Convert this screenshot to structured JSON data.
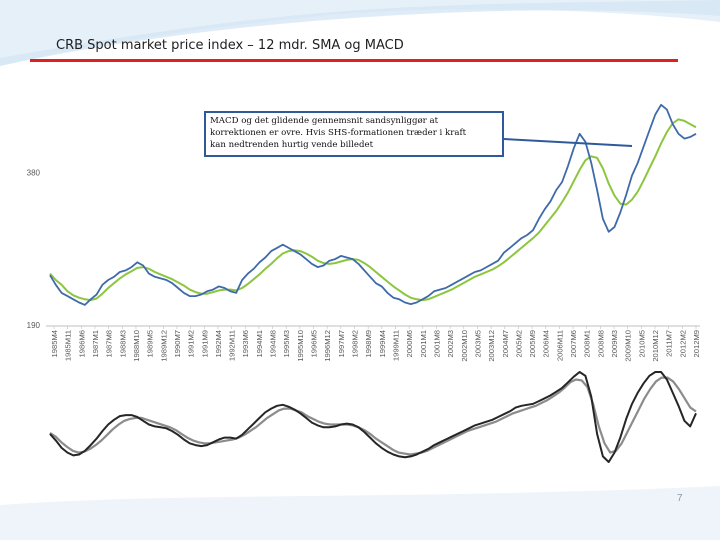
{
  "slide": {
    "title": "CRB Spot market price index – 12 mdr. SMA og MACD",
    "page_number": "7",
    "accent_color": "#e02020",
    "background_wave_color": "#dce9f5"
  },
  "annotation": {
    "lines": [
      "MACD og det glidende gennemsnit sandsynliggør at",
      "korrektionen er ovre. Hvis SHS-formationen træder i kraft",
      "kan nedtrenden hurtig vende billedet"
    ],
    "border_color": "#2e5a9c"
  },
  "chart_data": [
    {
      "type": "line",
      "title": "",
      "xlabel": "",
      "ylabel": "",
      "ylim": [
        190,
        470
      ],
      "yticks": [
        190,
        380
      ],
      "grid": false,
      "legend": "none",
      "x_tick_labels": [
        "1985M4",
        "1985M11",
        "1986M6",
        "1987M1",
        "1987M8",
        "1988M3",
        "1988M10",
        "1989M5",
        "1989M12",
        "1990M7",
        "1991M2",
        "1991M9",
        "1992M4",
        "1992M11",
        "1993M6",
        "1994M1",
        "1994M8",
        "1995M3",
        "1995M10",
        "1996M5",
        "1996M12",
        "1997M7",
        "1998M2",
        "1998M9",
        "1999M4",
        "1999M11",
        "2000M6",
        "2001M1",
        "2001M8",
        "2002M3",
        "2002M10",
        "2003M5",
        "2003M12",
        "2004M7",
        "2005M2",
        "2005M9",
        "2006M4",
        "2006M11",
        "2007M6",
        "2008M1",
        "2008M8",
        "2009M3",
        "2009M10",
        "2010M5",
        "2010M12",
        "2011M7",
        "2012M2",
        "2012M9"
      ],
      "series": [
        {
          "color": "#3f6aaa",
          "values": [
            252,
            240,
            230,
            226,
            222,
            218,
            215,
            222,
            228,
            240,
            246,
            250,
            256,
            258,
            262,
            268,
            264,
            254,
            250,
            248,
            246,
            242,
            236,
            230,
            226,
            226,
            228,
            232,
            234,
            238,
            236,
            232,
            230,
            246,
            254,
            260,
            268,
            274,
            282,
            286,
            290,
            286,
            282,
            278,
            272,
            266,
            262,
            264,
            270,
            272,
            276,
            274,
            272,
            266,
            258,
            250,
            242,
            238,
            230,
            224,
            222,
            218,
            216,
            218,
            222,
            226,
            232,
            234,
            236,
            240,
            244,
            248,
            252,
            256,
            258,
            262,
            266,
            270,
            280,
            286,
            292,
            298,
            302,
            308,
            322,
            334,
            344,
            358,
            368,
            388,
            410,
            428,
            418,
            392,
            358,
            322,
            306,
            312,
            330,
            352,
            376,
            392,
            412,
            432,
            452,
            464,
            458,
            440,
            428,
            422,
            424,
            428
          ]
        },
        {
          "color": "#8cc63f",
          "values": [
            254,
            246,
            240,
            232,
            227,
            224,
            222,
            221,
            223,
            229,
            236,
            242,
            248,
            253,
            257,
            261,
            262,
            260,
            256,
            253,
            250,
            247,
            243,
            239,
            234,
            231,
            229,
            229,
            231,
            233,
            234,
            234,
            233,
            236,
            241,
            247,
            253,
            260,
            266,
            273,
            279,
            282,
            283,
            282,
            279,
            275,
            270,
            267,
            266,
            267,
            269,
            271,
            272,
            271,
            267,
            262,
            256,
            250,
            244,
            238,
            233,
            228,
            224,
            222,
            221,
            222,
            225,
            228,
            231,
            234,
            238,
            242,
            246,
            250,
            253,
            256,
            259,
            263,
            268,
            274,
            280,
            286,
            292,
            298,
            305,
            314,
            323,
            332,
            343,
            355,
            369,
            383,
            395,
            400,
            398,
            385,
            366,
            351,
            341,
            340,
            346,
            356,
            370,
            385,
            400,
            416,
            430,
            441,
            446,
            444,
            440,
            436
          ]
        }
      ]
    },
    {
      "type": "line",
      "title": "",
      "xlabel": "",
      "ylabel": "",
      "grid": false,
      "legend": "none",
      "series": [
        {
          "color": "#262626",
          "values": [
            -2,
            -9,
            -17,
            -22,
            -25,
            -24,
            -20,
            -14,
            -7,
            1,
            8,
            13,
            17,
            18,
            18,
            16,
            12,
            8,
            6,
            5,
            4,
            1,
            -3,
            -8,
            -12,
            -14,
            -15,
            -14,
            -11,
            -8,
            -6,
            -6,
            -7,
            -3,
            3,
            9,
            15,
            21,
            25,
            28,
            29,
            27,
            24,
            20,
            15,
            10,
            7,
            5,
            5,
            6,
            8,
            9,
            8,
            5,
            0,
            -6,
            -12,
            -17,
            -21,
            -24,
            -26,
            -27,
            -26,
            -24,
            -21,
            -18,
            -14,
            -11,
            -8,
            -5,
            -2,
            1,
            4,
            7,
            9,
            11,
            13,
            16,
            19,
            22,
            26,
            28,
            29,
            30,
            33,
            36,
            39,
            43,
            47,
            53,
            59,
            64,
            60,
            38,
            -2,
            -26,
            -32,
            -22,
            -6,
            14,
            30,
            42,
            52,
            60,
            64,
            64,
            56,
            42,
            28,
            12,
            6,
            20
          ]
        },
        {
          "color": "#8c8c8c",
          "values": [
            -1,
            -5,
            -11,
            -16,
            -20,
            -22,
            -21,
            -18,
            -14,
            -9,
            -3,
            3,
            8,
            12,
            14,
            15,
            15,
            13,
            11,
            9,
            7,
            5,
            2,
            -2,
            -6,
            -9,
            -11,
            -12,
            -12,
            -11,
            -10,
            -9,
            -8,
            -6,
            -3,
            1,
            5,
            10,
            15,
            19,
            23,
            25,
            25,
            23,
            21,
            17,
            14,
            11,
            9,
            8,
            8,
            8,
            8,
            7,
            5,
            2,
            -2,
            -7,
            -11,
            -15,
            -19,
            -22,
            -23,
            -24,
            -23,
            -22,
            -20,
            -17,
            -14,
            -11,
            -8,
            -5,
            -2,
            1,
            3,
            5,
            7,
            9,
            11,
            14,
            17,
            20,
            22,
            24,
            26,
            28,
            31,
            34,
            38,
            42,
            47,
            53,
            56,
            55,
            48,
            30,
            6,
            -12,
            -22,
            -20,
            -12,
            0,
            12,
            24,
            36,
            46,
            54,
            58,
            58,
            54,
            46,
            36,
            26,
            22
          ]
        }
      ]
    }
  ]
}
